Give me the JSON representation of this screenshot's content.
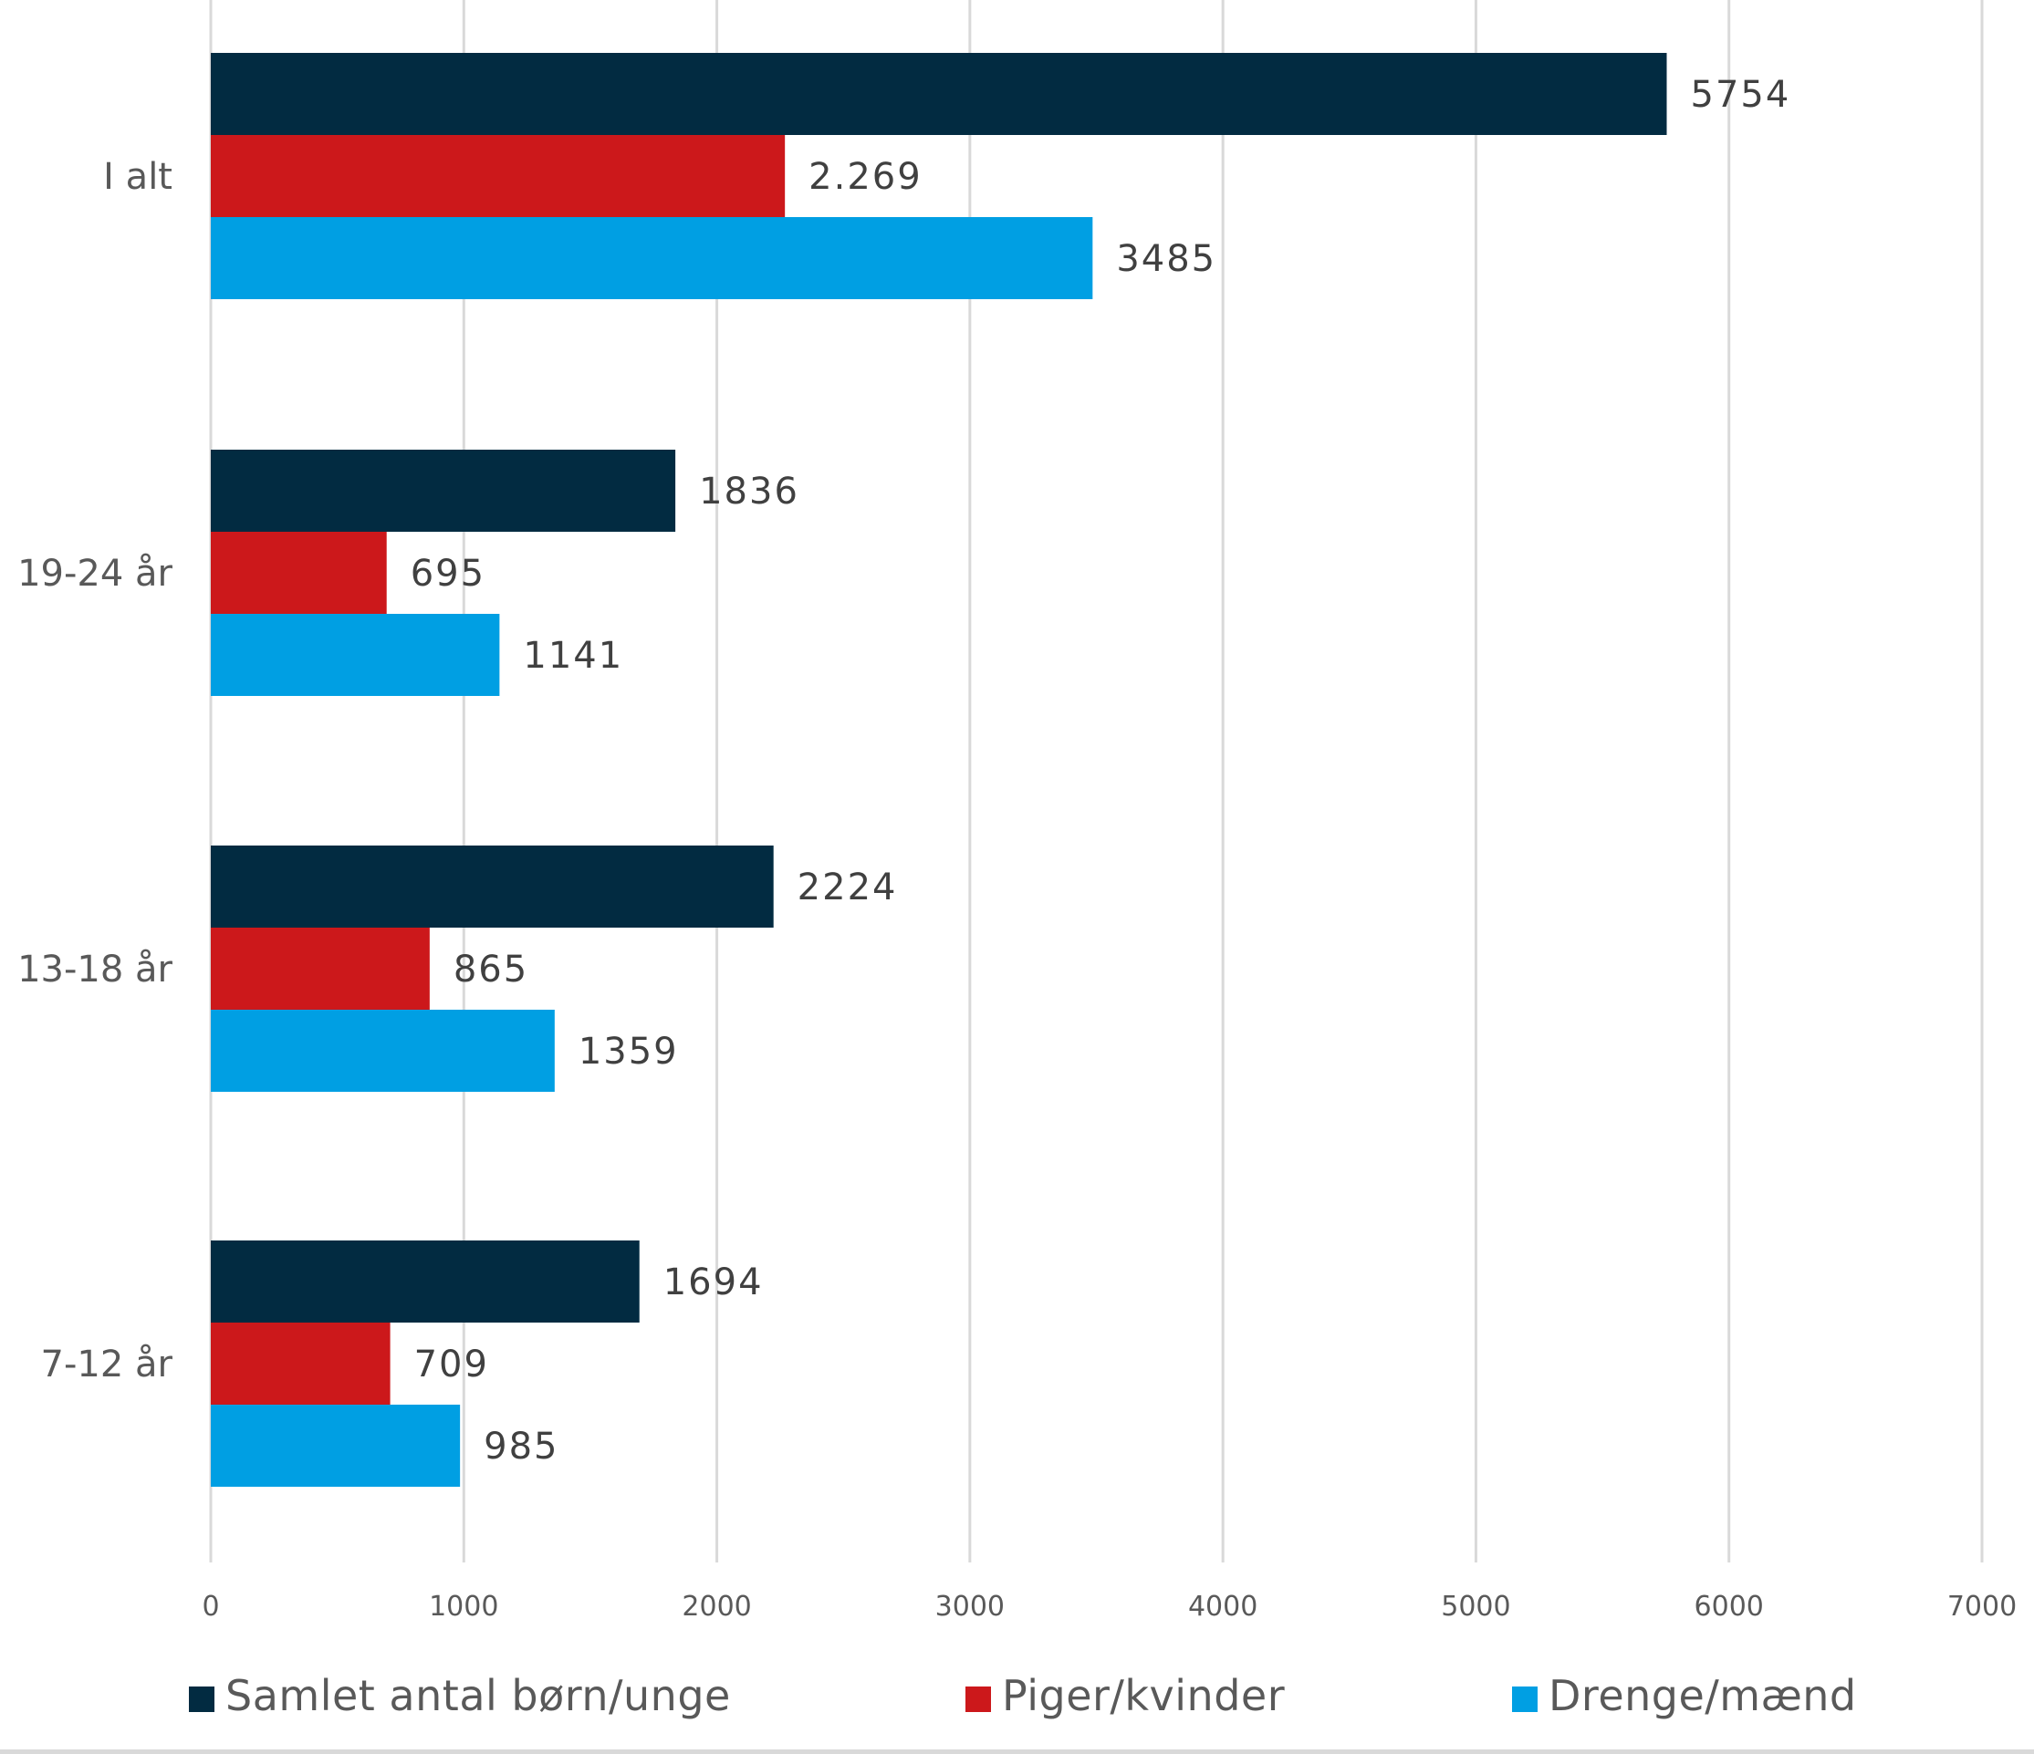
{
  "chart_data": {
    "type": "bar",
    "orientation": "horizontal",
    "title": "",
    "xlabel": "",
    "ylabel": "",
    "categories": [
      "I alt",
      "19-24 år",
      "13-18 år",
      "7-12 år"
    ],
    "series": [
      {
        "name": "Samlet antal børn/unge",
        "color": "#022b41",
        "values": [
          5754,
          1836,
          2224,
          1694
        ],
        "labels": [
          "5754",
          "1836",
          "2224",
          "1694"
        ]
      },
      {
        "name": "Piger/kvinder",
        "color": "#cc181b",
        "values": [
          2269,
          695,
          865,
          709
        ],
        "labels": [
          "2.269",
          "695",
          "865",
          "709"
        ]
      },
      {
        "name": "Drenge/mænd",
        "color": "#009fe3",
        "values": [
          3485,
          1141,
          1359,
          985
        ],
        "labels": [
          "3485",
          "1141",
          "1359",
          "985"
        ]
      }
    ],
    "xlim": [
      0,
      7000
    ],
    "xticks": [
      0,
      1000,
      2000,
      3000,
      4000,
      5000,
      6000,
      7000
    ],
    "xtick_labels": [
      "0",
      "1000",
      "2000",
      "3000",
      "4000",
      "5000",
      "6000",
      "7000"
    ],
    "grid": true,
    "legend_position": "bottom"
  },
  "legend": {
    "items": [
      {
        "label": "Samlet antal børn/unge",
        "color": "#022b41"
      },
      {
        "label": "Piger/kvinder",
        "color": "#cc181b"
      },
      {
        "label": "Drenge/mænd",
        "color": "#009fe3"
      }
    ]
  }
}
